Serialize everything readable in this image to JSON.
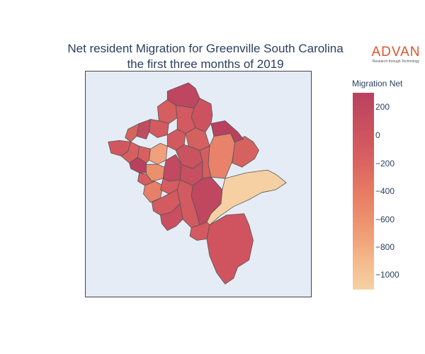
{
  "title": {
    "line1": "Net resident Migration for Greenville South Carolina",
    "line2": "the first three months of 2019"
  },
  "logo": {
    "name": "ADVAN",
    "tagline": "Research through Technology",
    "color": "#e2532d"
  },
  "map": {
    "background": "#e5ecf6",
    "region_border_color": "#555555"
  },
  "colorbar": {
    "title": "Migration Net",
    "ticks": [
      "200",
      "0",
      "−200",
      "−400",
      "−600",
      "−800",
      "−1000"
    ],
    "tick_values": [
      200,
      0,
      -200,
      -400,
      -600,
      -800,
      -1000
    ],
    "range": [
      -1100,
      320
    ],
    "colorscale": [
      "#f6d1a4",
      "#f4b88c",
      "#ef9a73",
      "#e77a64",
      "#d55c5f",
      "#b9415f"
    ]
  },
  "chart_data": {
    "type": "choropleth",
    "title": "Net resident Migration for Greenville South Carolina the first three months of 2019",
    "colorbar_title": "Migration Net",
    "value_range": [
      -1100,
      320
    ]
  }
}
